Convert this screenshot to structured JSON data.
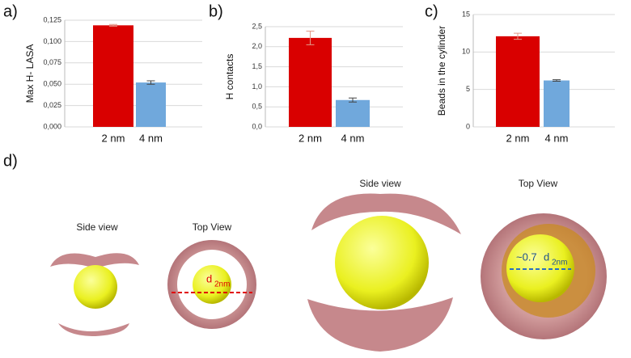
{
  "chart_data": [
    {
      "type": "bar",
      "panel_label": "a)",
      "y_label": "Max H- LASA",
      "categories": [
        "2 nm",
        "4 nm"
      ],
      "values": [
        0.119,
        0.052
      ],
      "errors": [
        0.001,
        0.002
      ],
      "colors": [
        "#d90000",
        "#70a8dc"
      ],
      "ylim": [
        0,
        0.125
      ],
      "yticks": [
        {
          "value": 0,
          "label": "0,000"
        },
        {
          "value": 0.025,
          "label": "0,025"
        },
        {
          "value": 0.05,
          "label": "0,050"
        },
        {
          "value": 0.075,
          "label": "0,075"
        },
        {
          "value": 0.1,
          "label": "0,100"
        },
        {
          "value": 0.125,
          "label": "0,125"
        }
      ],
      "grid": true
    },
    {
      "type": "bar",
      "panel_label": "b)",
      "y_label": "H contacts",
      "categories": [
        "2 nm",
        "4 nm"
      ],
      "values": [
        2.22,
        0.67
      ],
      "errors": [
        0.17,
        0.05
      ],
      "colors": [
        "#d90000",
        "#70a8dc"
      ],
      "ylim": [
        0,
        2.5
      ],
      "yticks": [
        {
          "value": 0,
          "label": "0,0"
        },
        {
          "value": 0.5,
          "label": "0,5"
        },
        {
          "value": 1,
          "label": "1,0"
        },
        {
          "value": 1.5,
          "label": "1,5"
        },
        {
          "value": 2,
          "label": "2,0"
        },
        {
          "value": 2.5,
          "label": "2,5"
        }
      ],
      "grid": true
    },
    {
      "type": "bar",
      "panel_label": "c)",
      "y_label": "Beads in the cylinder",
      "categories": [
        "2 nm",
        "4 nm"
      ],
      "values": [
        12.1,
        6.2
      ],
      "errors": [
        0.4,
        0.1
      ],
      "colors": [
        "#d90000",
        "#70a8dc"
      ],
      "ylim": [
        0,
        15
      ],
      "yticks": [
        0,
        5,
        10,
        15
      ],
      "grid": true
    }
  ],
  "panel_d": {
    "label": "d)",
    "views": [
      "Side view",
      "Top View",
      "Side view",
      "Top View"
    ],
    "dim_small": {
      "symbol": "d",
      "subscript": "2nm"
    },
    "dim_large": {
      "prefix": "~0.7",
      "symbol": "d",
      "subscript": "2nm"
    }
  }
}
